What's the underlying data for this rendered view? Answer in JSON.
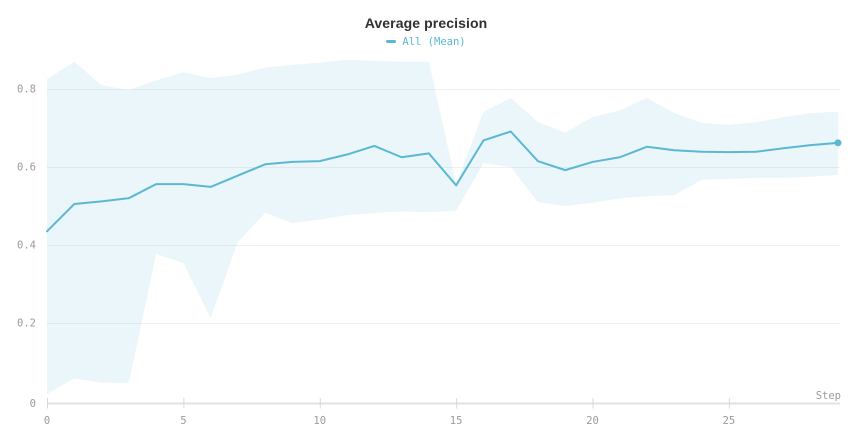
{
  "header": {
    "title": "Average precision"
  },
  "legend": {
    "label": "All (Mean)",
    "color": "#5ab8d4"
  },
  "colors": {
    "line": "#5ab8d4",
    "band_fill": "#5ab8d4",
    "band_opacity": 0.13,
    "gridline": "#f1f1f1",
    "axis_line": "#e2e2e2",
    "tick_mark": "#d9d9d9",
    "tick_label": "#9b9b9b"
  },
  "chart_data": {
    "type": "line",
    "title": "Average precision",
    "xlabel": "Step",
    "ylabel": "",
    "grid": "horizontal",
    "legend_position": "top-center",
    "xlim": [
      0,
      29
    ],
    "ylim": [
      0,
      0.9
    ],
    "xticks": [
      0,
      5,
      10,
      15,
      20,
      25
    ],
    "yticks": [
      0,
      0.2,
      0.4,
      0.6,
      0.8
    ],
    "x": [
      0,
      1,
      2,
      3,
      4,
      5,
      6,
      7,
      8,
      9,
      10,
      11,
      12,
      13,
      14,
      15,
      16,
      17,
      18,
      19,
      20,
      21,
      22,
      23,
      24,
      25,
      26,
      27,
      28,
      29
    ],
    "series": [
      {
        "name": "All (Mean)",
        "values": [
          0.435,
          0.505,
          0.512,
          0.52,
          0.556,
          0.556,
          0.549,
          0.578,
          0.607,
          0.613,
          0.615,
          0.632,
          0.654,
          0.625,
          0.635,
          0.553,
          0.668,
          0.691,
          0.615,
          0.592,
          0.613,
          0.625,
          0.652,
          0.643,
          0.639,
          0.638,
          0.639,
          0.648,
          0.656,
          0.662
        ],
        "color": "#5ab8d4",
        "endpoint_dot": true
      }
    ],
    "band": {
      "name": "min-max-range",
      "upper": [
        0.825,
        0.87,
        0.81,
        0.797,
        0.822,
        0.843,
        0.828,
        0.837,
        0.855,
        0.862,
        0.868,
        0.875,
        0.872,
        0.87,
        0.87,
        0.556,
        0.741,
        0.777,
        0.715,
        0.688,
        0.728,
        0.745,
        0.777,
        0.738,
        0.713,
        0.708,
        0.715,
        0.728,
        0.738,
        0.742
      ],
      "lower": [
        0.018,
        0.058,
        0.047,
        0.046,
        0.377,
        0.354,
        0.213,
        0.408,
        0.482,
        0.456,
        0.465,
        0.477,
        0.482,
        0.486,
        0.484,
        0.488,
        0.61,
        0.6,
        0.51,
        0.5,
        0.508,
        0.52,
        0.525,
        0.528,
        0.567,
        0.57,
        0.572,
        0.572,
        0.575,
        0.58
      ]
    }
  }
}
